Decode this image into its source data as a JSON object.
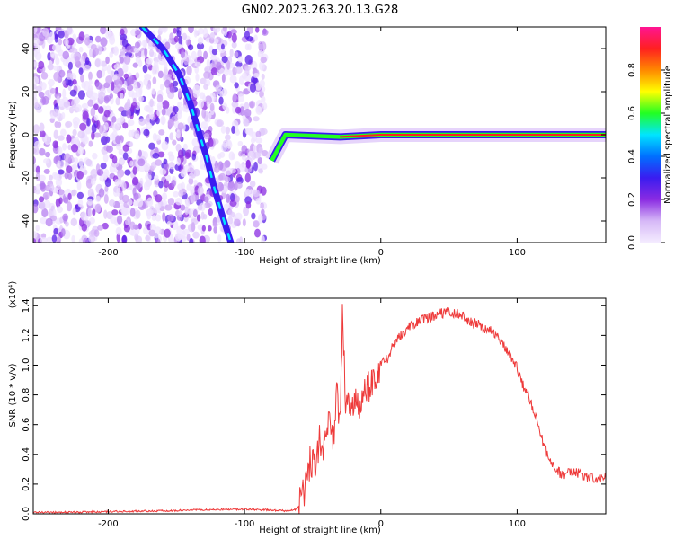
{
  "figure_title": "GN02.2023.263.20.13.G28",
  "colors": {
    "snr_line": "#ee3b3b",
    "axis": "#000000",
    "colorbar_stops": [
      "#f4ecff",
      "#d6b8f7",
      "#8a2be2",
      "#3a1cf0",
      "#0070ff",
      "#00e5ff",
      "#22ff22",
      "#ffff00",
      "#ff8800",
      "#ff2020",
      "#ff1493"
    ]
  },
  "chart_data": [
    {
      "type": "heatmap",
      "title": "",
      "xlabel": "Height of straight line (km)",
      "ylabel": "Frequency (Hz)",
      "xlim": [
        -255,
        165
      ],
      "ylim": [
        -50,
        50
      ],
      "xticks": [
        -200,
        -100,
        0,
        100
      ],
      "yticks": [
        -40,
        -20,
        0,
        20,
        40
      ],
      "grid": false,
      "colorbar": {
        "label": "Normalized spectral amplitude",
        "range": [
          0,
          1
        ],
        "ticks": [
          "0.0",
          "0.2",
          "0.4",
          "0.6",
          "0.8"
        ]
      },
      "features": [
        {
          "name": "",
          "description_values": "diagonal trace",
          "points": [
            [
              -175,
              50
            ],
            [
              -160,
              40
            ],
            [
              -148,
              28
            ],
            [
              -140,
              15
            ],
            [
              -133,
              0
            ],
            [
              -128,
              -10
            ],
            [
              -122,
              -25
            ],
            [
              -116,
              -38
            ],
            [
              -110,
              -50
            ]
          ]
        },
        {
          "name": "",
          "description_values": "horizontal band",
          "points": [
            [
              -80,
              -12
            ],
            [
              -70,
              0
            ],
            [
              -30,
              -1
            ],
            [
              0,
              0
            ],
            [
              100,
              0
            ],
            [
              165,
              0
            ]
          ]
        }
      ]
    },
    {
      "type": "line",
      "title": "",
      "xlabel": "Height of straight line (km)",
      "ylabel": "SNR (10 * v/v)",
      "y_scale_note": "(x10⁴)",
      "xlim": [
        -255,
        165
      ],
      "ylim": [
        0,
        1.45
      ],
      "xticks": [
        -200,
        -100,
        0,
        100
      ],
      "yticks": [
        "0.0",
        "0.2",
        "0.4",
        "0.6",
        "0.8",
        "1.0",
        "1.2",
        "1.4"
      ],
      "grid": false,
      "series": [
        {
          "x": [
            -255,
            -240,
            -220,
            -200,
            -180,
            -160,
            -140,
            -120,
            -100,
            -80,
            -70,
            -62,
            -58,
            -55,
            -52,
            -48,
            -45,
            -42,
            -38,
            -35,
            -32,
            -30,
            -28,
            -26,
            -24,
            -20,
            -15,
            -10,
            -5,
            0,
            5,
            10,
            15,
            20,
            25,
            30,
            35,
            40,
            45,
            50,
            55,
            60,
            65,
            70,
            75,
            80,
            85,
            90,
            95,
            100,
            105,
            110,
            115,
            120,
            125,
            130,
            135,
            140,
            145,
            150,
            155,
            160,
            165
          ],
          "y": [
            0.01,
            0.01,
            0.012,
            0.015,
            0.018,
            0.02,
            0.025,
            0.03,
            0.03,
            0.025,
            0.02,
            0.03,
            0.08,
            0.2,
            0.35,
            0.3,
            0.5,
            0.4,
            0.7,
            0.5,
            0.85,
            0.6,
            1.4,
            0.7,
            0.8,
            0.75,
            0.75,
            0.85,
            0.92,
            1.0,
            1.05,
            1.15,
            1.2,
            1.25,
            1.28,
            1.31,
            1.32,
            1.33,
            1.35,
            1.36,
            1.34,
            1.33,
            1.3,
            1.28,
            1.25,
            1.24,
            1.2,
            1.15,
            1.05,
            0.98,
            0.85,
            0.75,
            0.6,
            0.45,
            0.35,
            0.28,
            0.26,
            0.28,
            0.27,
            0.25,
            0.24,
            0.24,
            0.25
          ]
        }
      ]
    }
  ]
}
